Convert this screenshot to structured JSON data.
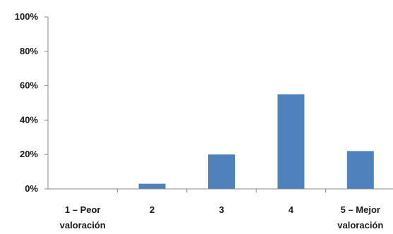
{
  "chart_data": {
    "type": "bar",
    "categories": [
      [
        "1 – Peor",
        "valoración"
      ],
      [
        "2"
      ],
      [
        "3"
      ],
      [
        "4"
      ],
      [
        "5 – Mejor",
        "valoración"
      ]
    ],
    "values": [
      0,
      3,
      20,
      55,
      22
    ],
    "ylim": [
      0,
      100
    ],
    "yticks": [
      "0%",
      "20%",
      "40%",
      "60%",
      "80%",
      "100%"
    ],
    "ytick_values": [
      0,
      20,
      40,
      60,
      80,
      100
    ],
    "grid": false,
    "legend": "none",
    "bar_color": "#4f81bd",
    "axis_color": "#888888"
  }
}
